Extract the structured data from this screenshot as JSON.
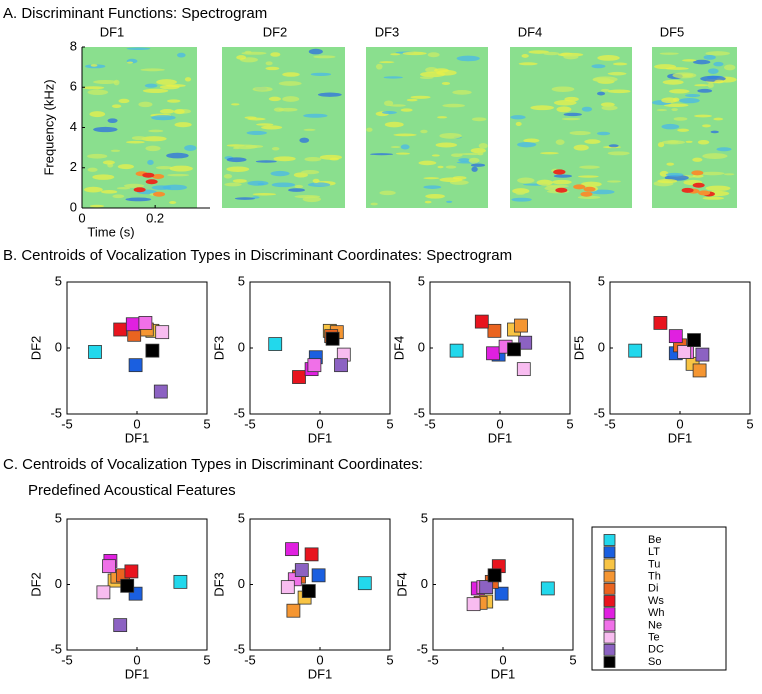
{
  "headings": [
    "A. Discriminant Functions: Spectrogram",
    "B. Centroids of Vocalization Types in Discriminant Coordinates: Spectrogram",
    "C. Centroids of Vocalization Types in Discriminant Coordinates:",
    "Predefined Acoustical Features"
  ],
  "legend": {
    "names": [
      "Be",
      "LT",
      "Tu",
      "Th",
      "Di",
      "Ws",
      "Wh",
      "Ne",
      "Te",
      "DC",
      "So"
    ],
    "colors": [
      "#22d8ec",
      "#1a5fe0",
      "#f8c444",
      "#f59632",
      "#ea6420",
      "#e8141e",
      "#e020e0",
      "#f070e8",
      "#f8bcf0",
      "#8c62c2",
      "#000000"
    ]
  },
  "chart_data": [
    {
      "type": "image",
      "title": "DF1",
      "xlabel": "Time (s)",
      "ylabel": "Frequency (kHz)",
      "xlim": [
        0,
        0.35
      ],
      "xticks": [
        0,
        0.2
      ],
      "ylim": [
        0,
        8
      ],
      "yticks": [
        0,
        2,
        4,
        6,
        8
      ]
    },
    {
      "type": "image",
      "title": "DF2"
    },
    {
      "type": "image",
      "title": "DF3"
    },
    {
      "type": "image",
      "title": "DF4"
    },
    {
      "type": "image",
      "title": "DF5"
    },
    {
      "type": "scatter",
      "xlabel": "DF1",
      "ylabel": "DF2",
      "xlim": [
        -5,
        5
      ],
      "ylim": [
        -5,
        5
      ],
      "xticks": [
        -5,
        0,
        5
      ],
      "yticks": [
        -5,
        0,
        5
      ],
      "x": [
        -3.0,
        -0.1,
        1.1,
        0.7,
        -0.2,
        -1.2,
        -0.3,
        0.6,
        1.8,
        1.7,
        1.1
      ],
      "y": [
        -0.3,
        -1.3,
        1.3,
        1.4,
        1.0,
        1.4,
        1.8,
        1.9,
        1.2,
        -3.3,
        -0.2
      ]
    },
    {
      "type": "scatter",
      "xlabel": "DF1",
      "ylabel": "DF3",
      "xlim": [
        -5,
        5
      ],
      "ylim": [
        -5,
        5
      ],
      "xticks": [
        -5,
        0,
        5
      ],
      "yticks": [
        -5,
        0,
        5
      ],
      "x": [
        -3.2,
        -0.3,
        0.7,
        1.2,
        0.8,
        -1.5,
        -0.6,
        -0.4,
        1.7,
        1.5,
        0.9
      ],
      "y": [
        0.3,
        -0.7,
        1.3,
        1.2,
        0.9,
        -2.2,
        -1.6,
        -1.3,
        -0.5,
        -1.3,
        0.7
      ]
    },
    {
      "type": "scatter",
      "xlabel": "DF1",
      "ylabel": "DF4",
      "xlim": [
        -5,
        5
      ],
      "ylim": [
        -5,
        5
      ],
      "xticks": [
        -5,
        0,
        5
      ],
      "yticks": [
        -5,
        0,
        5
      ],
      "x": [
        -3.1,
        -0.1,
        1.0,
        1.5,
        -0.4,
        -1.3,
        -0.5,
        0.4,
        1.7,
        1.8,
        1.0
      ],
      "y": [
        -0.2,
        -0.5,
        1.4,
        1.7,
        1.3,
        2.0,
        -0.4,
        0.1,
        -1.6,
        0.4,
        -0.1
      ]
    },
    {
      "type": "scatter",
      "xlabel": "DF1",
      "ylabel": "DF5",
      "xlim": [
        -5,
        5
      ],
      "ylim": [
        -5,
        5
      ],
      "xticks": [
        -5,
        0,
        5
      ],
      "yticks": [
        -5,
        0,
        5
      ],
      "x": [
        -3.2,
        -0.3,
        0.9,
        1.4,
        0.0,
        -1.4,
        -0.3,
        0.5,
        0.3,
        1.6,
        1.0
      ],
      "y": [
        -0.2,
        -0.4,
        -1.2,
        -1.7,
        0.2,
        1.9,
        0.9,
        -0.3,
        -0.3,
        -0.5,
        0.6
      ]
    },
    {
      "type": "scatter",
      "xlabel": "DF1",
      "ylabel": "DF2",
      "xlim": [
        -5,
        5
      ],
      "ylim": [
        -5,
        5
      ],
      "xticks": [
        -5,
        0,
        5
      ],
      "yticks": [
        -5,
        0,
        5
      ],
      "x": [
        3.1,
        -0.1,
        -1.6,
        -1.4,
        -1.0,
        -0.4,
        -1.9,
        -2.0,
        -2.4,
        -1.2,
        -0.7
      ],
      "y": [
        0.2,
        -0.7,
        0.3,
        0.6,
        0.7,
        1.0,
        1.8,
        1.4,
        -0.6,
        -3.1,
        -0.1
      ]
    },
    {
      "type": "scatter",
      "xlabel": "DF1",
      "ylabel": "DF3",
      "xlim": [
        -5,
        5
      ],
      "ylim": [
        -5,
        5
      ],
      "xticks": [
        -5,
        0,
        5
      ],
      "yticks": [
        -5,
        0,
        5
      ],
      "x": [
        3.2,
        -0.1,
        -1.1,
        -1.9,
        -1.5,
        -0.6,
        -2.0,
        -1.8,
        -2.3,
        -1.3,
        -0.8
      ],
      "y": [
        0.1,
        0.7,
        -1.0,
        -2.0,
        0.6,
        2.3,
        2.7,
        0.4,
        -0.2,
        1.1,
        -0.5
      ]
    },
    {
      "type": "scatter",
      "xlabel": "DF1",
      "ylabel": "DF4",
      "xlim": [
        -5,
        5
      ],
      "ylim": [
        -5,
        5
      ],
      "xticks": [
        -5,
        0,
        5
      ],
      "yticks": [
        -5,
        0,
        5
      ],
      "x": [
        3.2,
        -0.1,
        -1.2,
        -1.6,
        -0.8,
        -0.3,
        -1.8,
        -1.4,
        -2.1,
        -1.2,
        -0.6
      ],
      "y": [
        -0.3,
        -0.7,
        -1.3,
        -1.4,
        0.2,
        1.4,
        -0.3,
        -0.2,
        -1.5,
        -0.2,
        0.7
      ]
    }
  ]
}
